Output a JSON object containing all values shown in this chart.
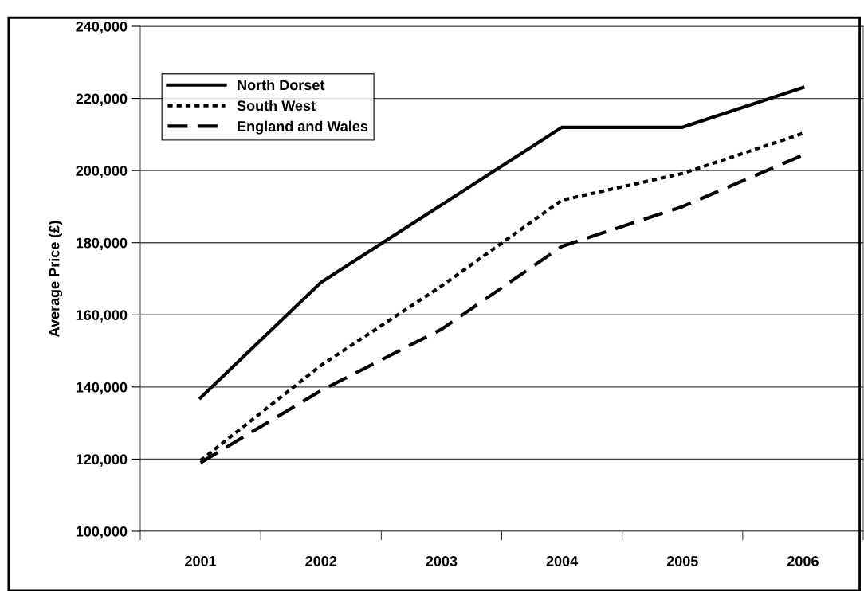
{
  "chart_data": {
    "type": "line",
    "ylabel": "Average Price (£)",
    "categories": [
      "2001",
      "2002",
      "2003",
      "2004",
      "2005",
      "2006"
    ],
    "series": [
      {
        "name": "North Dorset",
        "color": "#000000",
        "line_style": "solid",
        "values": [
          137000,
          169000,
          190500,
          212000,
          212000,
          223000
        ]
      },
      {
        "name": "South West",
        "color": "#000000",
        "line_style": "dotted",
        "values": [
          119600,
          146000,
          168000,
          191800,
          199200,
          210300
        ]
      },
      {
        "name": "England and Wales",
        "color": "#000000",
        "line_style": "dashed",
        "values": [
          119000,
          139000,
          156000,
          179000,
          190000,
          204300
        ]
      }
    ],
    "ylim": [
      100000,
      240000
    ],
    "yticks": [
      {
        "value": 100000,
        "label": "100,000"
      },
      {
        "value": 120000,
        "label": "120,000"
      },
      {
        "value": 140000,
        "label": "140,000"
      },
      {
        "value": 160000,
        "label": "160,000"
      },
      {
        "value": 180000,
        "label": "180,000"
      },
      {
        "value": 200000,
        "label": "200,000"
      },
      {
        "value": 220000,
        "label": "220,000"
      },
      {
        "value": 240000,
        "label": "240,000"
      }
    ],
    "grid": "y",
    "legend": "top left",
    "marker": "none"
  }
}
